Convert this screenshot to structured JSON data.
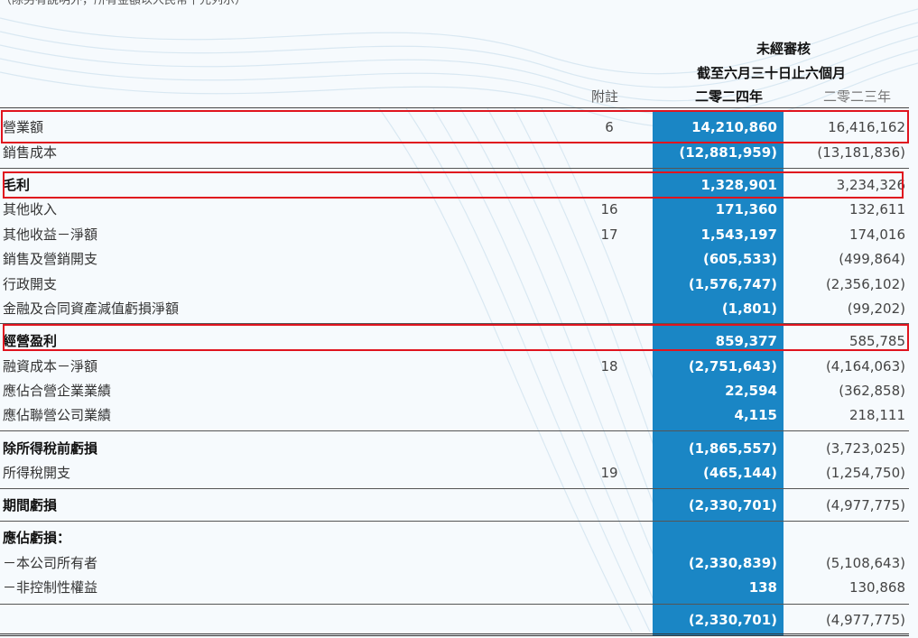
{
  "page": {
    "unit_note": "（除另有說明外，所有金額以人民幣千元列示）"
  },
  "header": {
    "unaudited": "未經審核",
    "period": "截至六月三十日止六個月",
    "note_col": "附註",
    "year_2024": "二零二四年",
    "year_2023": "二零二三年"
  },
  "rows": [
    {
      "label": "營業額",
      "note": "6",
      "cur": "14,210,860",
      "prev": "16,416,162",
      "bold": false
    },
    {
      "label": "銷售成本",
      "note": "",
      "cur": "(12,881,959)",
      "prev": "(13,181,836)",
      "bold": false
    },
    {
      "label": "毛利",
      "note": "",
      "cur": "1,328,901",
      "prev": "3,234,326",
      "bold": true
    },
    {
      "label": "其他收入",
      "note": "16",
      "cur": "171,360",
      "prev": "132,611",
      "bold": false
    },
    {
      "label": "其他收益－淨額",
      "note": "17",
      "cur": "1,543,197",
      "prev": "174,016",
      "bold": false
    },
    {
      "label": "銷售及營銷開支",
      "note": "",
      "cur": "(605,533)",
      "prev": "(499,864)",
      "bold": false
    },
    {
      "label": "行政開支",
      "note": "",
      "cur": "(1,576,747)",
      "prev": "(2,356,102)",
      "bold": false
    },
    {
      "label": "金融及合同資產減值虧損淨額",
      "note": "",
      "cur": "(1,801)",
      "prev": "(99,202)",
      "bold": false
    },
    {
      "label": "經營盈利",
      "note": "",
      "cur": "859,377",
      "prev": "585,785",
      "bold": true
    },
    {
      "label": "融資成本－淨額",
      "note": "18",
      "cur": "(2,751,643)",
      "prev": "(4,164,063)",
      "bold": false
    },
    {
      "label": "應佔合營企業業績",
      "note": "",
      "cur": "22,594",
      "prev": "(362,858)",
      "bold": false
    },
    {
      "label": "應佔聯營公司業績",
      "note": "",
      "cur": "4,115",
      "prev": "218,111",
      "bold": false
    },
    {
      "label": "除所得稅前虧損",
      "note": "",
      "cur": "(1,865,557)",
      "prev": "(3,723,025)",
      "bold": true
    },
    {
      "label": "所得稅開支",
      "note": "19",
      "cur": "(465,144)",
      "prev": "(1,254,750)",
      "bold": false
    },
    {
      "label": "期間虧損",
      "note": "",
      "cur": "(2,330,701)",
      "prev": "(4,977,775)",
      "bold": true
    },
    {
      "label": "應佔虧損：",
      "note": "",
      "cur": "",
      "prev": "",
      "bold": true
    },
    {
      "label": "－本公司所有者",
      "note": "",
      "cur": "(2,330,839)",
      "prev": "(5,108,643)",
      "bold": false
    },
    {
      "label": "－非控制性權益",
      "note": "",
      "cur": "138",
      "prev": "130,868",
      "bold": false
    },
    {
      "label": "",
      "note": "",
      "cur": "(2,330,701)",
      "prev": "(4,977,775)",
      "bold": false
    }
  ],
  "colors": {
    "current_year_column": "#1a86c5",
    "highlight_box": "#e0141e"
  }
}
